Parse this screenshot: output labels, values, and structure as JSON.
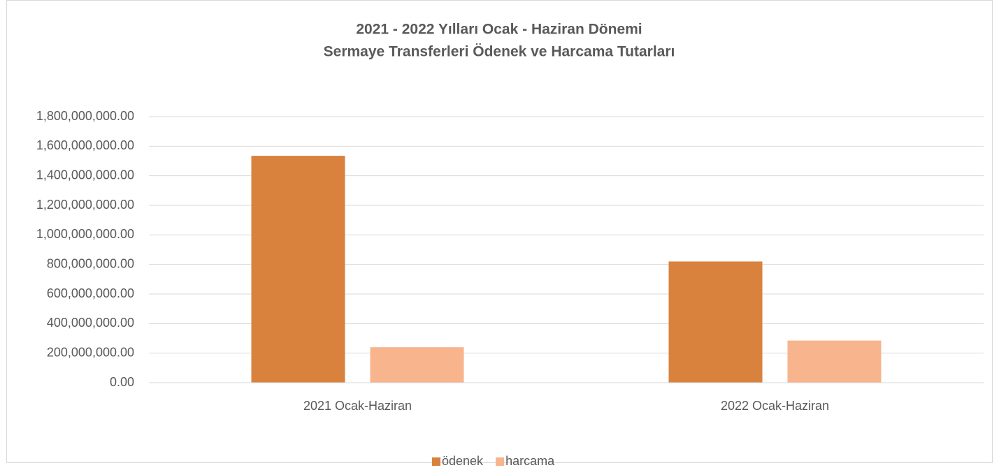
{
  "chart_data": {
    "type": "bar",
    "title": [
      "2021 - 2022 Yılları Ocak - Haziran Dönemi",
      "Sermaye Transferleri Ödenek ve Harcama Tutarları"
    ],
    "categories": [
      "2021 Ocak-Haziran",
      "2022 Ocak-Haziran"
    ],
    "series": [
      {
        "name": "ödenek",
        "color": "#d9823e",
        "values": [
          1535000000,
          820000000
        ]
      },
      {
        "name": "harcama",
        "color": "#f7b48d",
        "values": [
          240000000,
          285000000
        ]
      }
    ],
    "ylim": [
      0,
      1800000000
    ],
    "yticks": [
      {
        "value": 0,
        "label": "0.00"
      },
      {
        "value": 200000000,
        "label": "200,000,000.00"
      },
      {
        "value": 400000000,
        "label": "400,000,000.00"
      },
      {
        "value": 600000000,
        "label": "600,000,000.00"
      },
      {
        "value": 800000000,
        "label": "800,000,000.00"
      },
      {
        "value": 1000000000,
        "label": "1,000,000,000.00"
      },
      {
        "value": 1200000000,
        "label": "1,200,000,000.00"
      },
      {
        "value": 1400000000,
        "label": "1,400,000,000.00"
      },
      {
        "value": 1600000000,
        "label": "1,600,000,000.00"
      },
      {
        "value": 1800000000,
        "label": "1,800,000,000.00"
      }
    ],
    "grid": true,
    "legend": "bottom"
  }
}
